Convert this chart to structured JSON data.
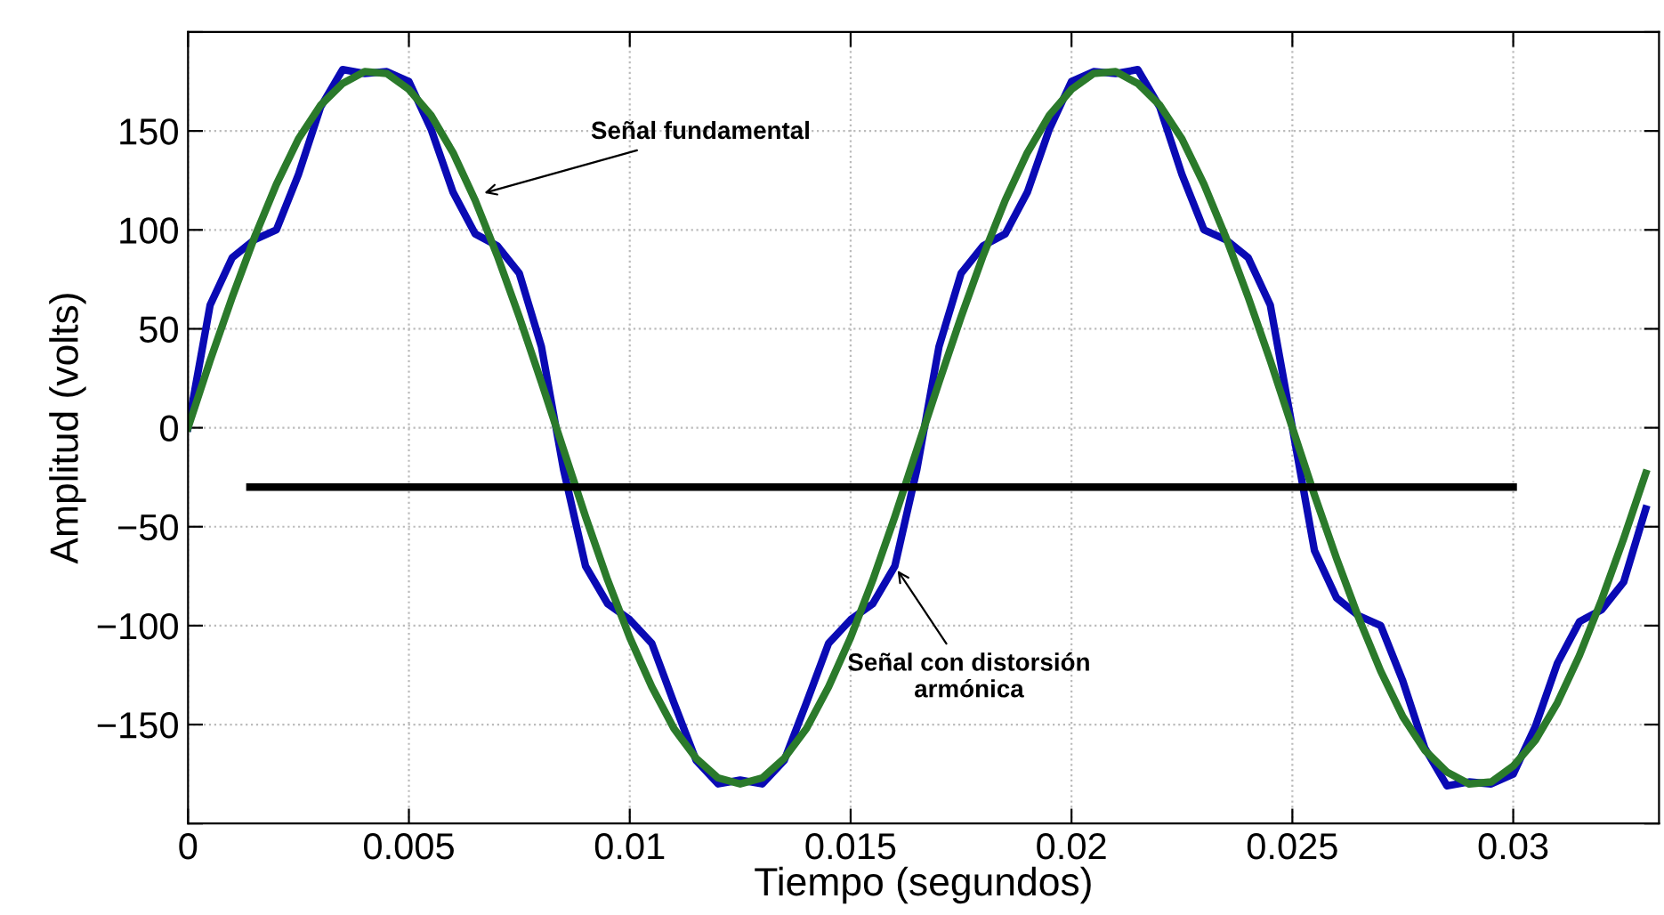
{
  "chart_data": {
    "type": "line",
    "xlabel": "Tiempo (segundos)",
    "ylabel": "Amplitud (volts)",
    "x": [
      0,
      0.0005,
      0.001,
      0.0015,
      0.002,
      0.0025,
      0.003,
      0.0035,
      0.004,
      0.0045,
      0.005,
      0.0055,
      0.006,
      0.0065,
      0.007,
      0.0075,
      0.008,
      0.0085,
      0.009,
      0.0095,
      0.01,
      0.0105,
      0.011,
      0.0115,
      0.012,
      0.0125,
      0.013,
      0.0135,
      0.014,
      0.0145,
      0.015,
      0.0155,
      0.016,
      0.0165,
      0.017,
      0.0175,
      0.018,
      0.0185,
      0.019,
      0.0195,
      0.02,
      0.0205,
      0.021,
      0.0215,
      0.022,
      0.0225,
      0.023,
      0.0235,
      0.024,
      0.0245,
      0.025,
      0.0255,
      0.026,
      0.0265,
      0.027,
      0.0275,
      0.028,
      0.0285,
      0.029,
      0.0295,
      0.03,
      0.0305,
      0.031,
      0.0315,
      0.032,
      0.0325,
      0.033
    ],
    "series": [
      {
        "color": "#0a0ab4",
        "values": [
          0,
          62,
          86,
          95,
          100,
          128,
          162,
          181,
          179,
          180,
          175,
          151,
          119,
          98,
          92,
          78,
          41,
          -21,
          -70,
          -89,
          -97,
          -109,
          -139,
          -168,
          -180,
          -178,
          -180,
          -168,
          -139,
          -109,
          -97,
          -89,
          -70,
          -21,
          41,
          78,
          92,
          98,
          119,
          151,
          175,
          180,
          179,
          181,
          162,
          128,
          100,
          95,
          86,
          62,
          0,
          -62,
          -86,
          -95,
          -100,
          -128,
          -162,
          -181,
          -179,
          -180,
          -175,
          -151,
          -119,
          -98,
          -92,
          -78,
          -41
        ]
      },
      {
        "color": "#2b7a2b",
        "values": [
          0,
          34,
          66,
          96,
          123,
          146,
          163,
          174,
          180,
          179,
          171,
          158,
          139,
          115,
          87,
          56,
          23,
          -11,
          -45,
          -77,
          -106,
          -131,
          -152,
          -167,
          -177,
          -180,
          -177,
          -167,
          -152,
          -131,
          -106,
          -77,
          -45,
          -11,
          23,
          56,
          87,
          115,
          139,
          158,
          171,
          179,
          180,
          174,
          163,
          146,
          123,
          96,
          66,
          34,
          0,
          -34,
          -66,
          -96,
          -123,
          -146,
          -163,
          -174,
          -180,
          -179,
          -171,
          -158,
          -139,
          -115,
          -87,
          -56,
          -23
        ]
      },
      {
        "color": "#000000",
        "x": [
          0.0014,
          0.03
        ],
        "values": [
          -30,
          -30
        ]
      }
    ],
    "annotations": [
      {
        "text": "Señal fundamental",
        "x": 0.0066,
        "y": 118
      },
      {
        "text": "Señal con distorsión\narmónica",
        "x": 0.016,
        "y": -70
      }
    ],
    "xlim": [
      0,
      0.0333
    ],
    "ylim": [
      -200,
      200
    ],
    "xticks": [
      0,
      0.005,
      0.01,
      0.015,
      0.02,
      0.025,
      0.03
    ],
    "yticks": [
      {
        "value": -200,
        "label": null
      },
      -150,
      -100,
      -50,
      0,
      50,
      100,
      150,
      {
        "value": 200,
        "label": null
      }
    ],
    "grid": true,
    "line_style": "solid",
    "marker": "none"
  }
}
